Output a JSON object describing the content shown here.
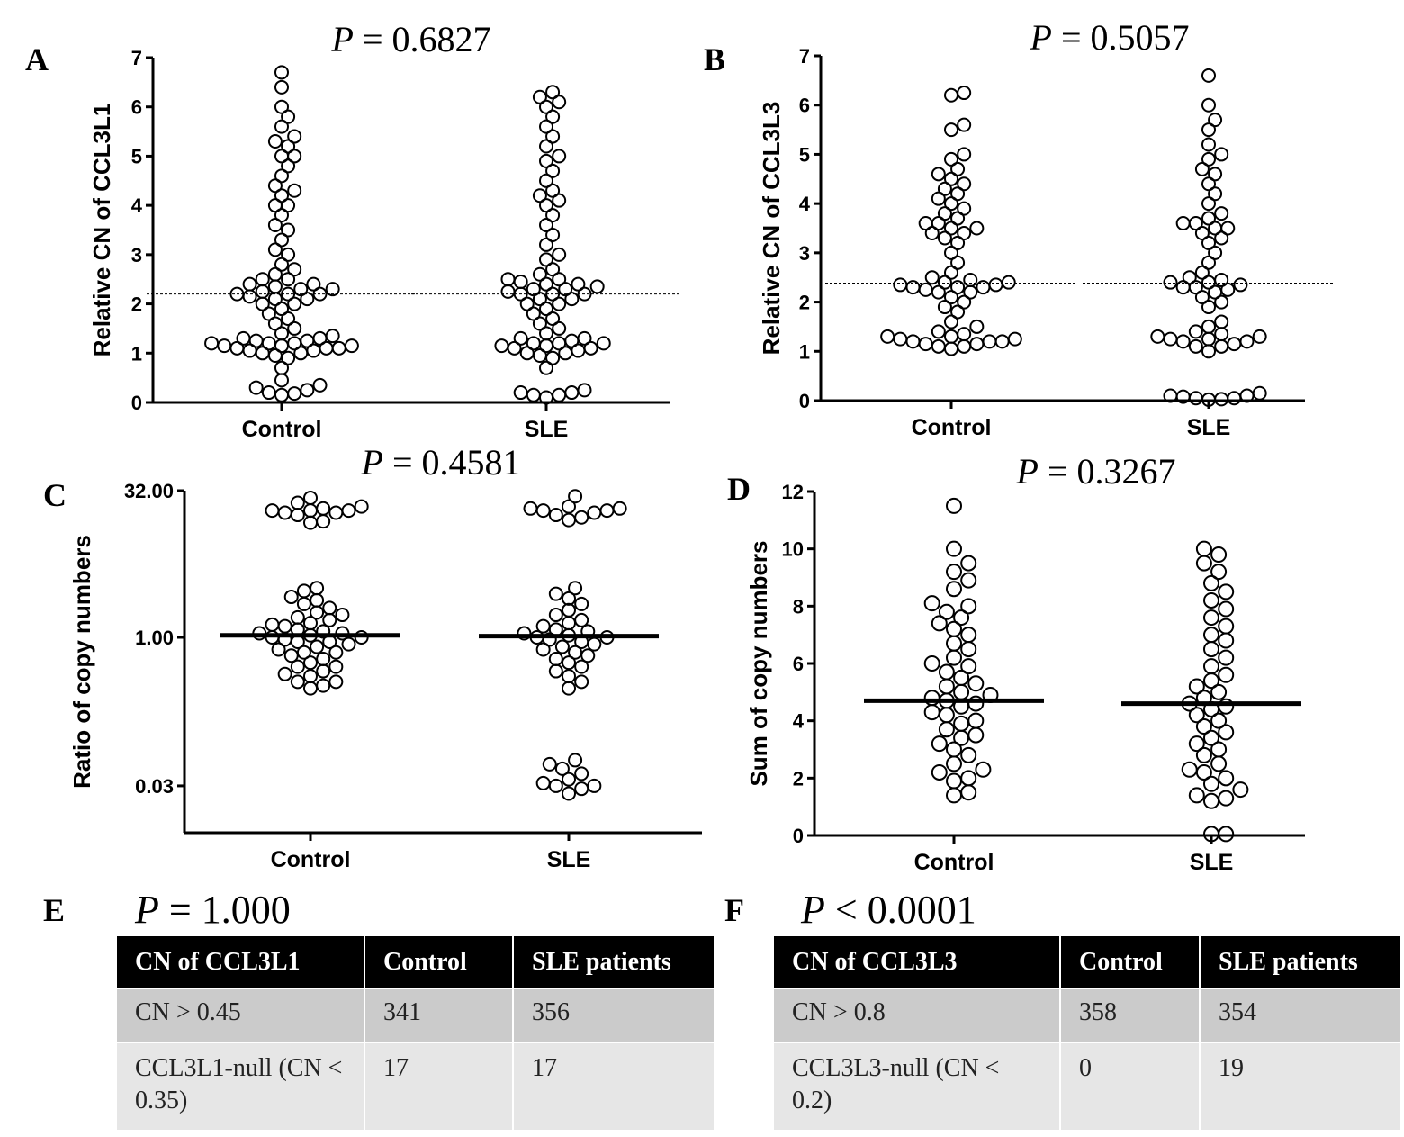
{
  "chart_data": [
    {
      "panel": "A",
      "type": "scatter",
      "title": "P = 0.6827",
      "ylabel": "Relative CN of CCL3L1",
      "scale": "linear",
      "ylim": [
        0,
        7
      ],
      "yticks": [
        0,
        1,
        2,
        3,
        4,
        5,
        6,
        7
      ],
      "ytick_labels": [
        "0",
        "1",
        "2",
        "3",
        "4",
        "5",
        "6",
        "7"
      ],
      "categories": [
        "Control",
        "SLE"
      ],
      "mean_line": [
        2.2,
        2.2
      ],
      "series": [
        {
          "values": [
            0.15,
            0.18,
            0.2,
            0.25,
            0.3,
            0.35,
            0.45,
            0.7,
            0.9,
            0.95,
            1.0,
            1.0,
            1.05,
            1.05,
            1.1,
            1.1,
            1.1,
            1.15,
            1.15,
            1.15,
            1.2,
            1.2,
            1.2,
            1.25,
            1.25,
            1.3,
            1.3,
            1.35,
            1.4,
            1.5,
            1.6,
            1.7,
            1.8,
            1.9,
            2.0,
            2.0,
            2.1,
            2.1,
            2.15,
            2.2,
            2.2,
            2.2,
            2.25,
            2.3,
            2.3,
            2.35,
            2.4,
            2.4,
            2.5,
            2.5,
            2.6,
            2.7,
            2.8,
            3.0,
            3.1,
            3.3,
            3.5,
            3.6,
            3.8,
            4.0,
            4.0,
            4.2,
            4.3,
            4.4,
            4.6,
            4.8,
            5.0,
            5.0,
            5.2,
            5.3,
            5.4,
            5.6,
            5.8,
            6.0,
            6.4,
            6.7
          ]
        },
        {
          "values": [
            0.1,
            0.15,
            0.15,
            0.2,
            0.2,
            0.25,
            0.7,
            0.9,
            0.95,
            1.0,
            1.0,
            1.05,
            1.1,
            1.1,
            1.15,
            1.15,
            1.2,
            1.2,
            1.2,
            1.25,
            1.3,
            1.3,
            1.4,
            1.5,
            1.6,
            1.7,
            1.8,
            1.9,
            2.0,
            2.0,
            2.1,
            2.1,
            2.2,
            2.2,
            2.2,
            2.25,
            2.3,
            2.3,
            2.35,
            2.4,
            2.4,
            2.45,
            2.5,
            2.5,
            2.6,
            2.7,
            2.9,
            3.0,
            3.2,
            3.4,
            3.6,
            3.8,
            4.0,
            4.1,
            4.2,
            4.3,
            4.5,
            4.7,
            4.9,
            5.0,
            5.2,
            5.4,
            5.6,
            5.8,
            6.0,
            6.1,
            6.2,
            6.3
          ]
        }
      ]
    },
    {
      "panel": "B",
      "type": "scatter",
      "title": "P = 0.5057",
      "ylabel": "Relative CN of CCL3L3",
      "scale": "linear",
      "ylim": [
        0,
        7
      ],
      "yticks": [
        0,
        1,
        2,
        3,
        4,
        5,
        6,
        7
      ],
      "ytick_labels": [
        "0",
        "1",
        "2",
        "3",
        "4",
        "5",
        "6",
        "7"
      ],
      "categories": [
        "Control",
        "SLE"
      ],
      "mean_line": [
        2.38,
        2.38
      ],
      "series": [
        {
          "values": [
            1.05,
            1.1,
            1.1,
            1.15,
            1.15,
            1.2,
            1.2,
            1.2,
            1.25,
            1.25,
            1.3,
            1.3,
            1.35,
            1.4,
            1.5,
            1.6,
            1.8,
            1.9,
            2.0,
            2.1,
            2.2,
            2.2,
            2.25,
            2.3,
            2.3,
            2.3,
            2.35,
            2.35,
            2.4,
            2.4,
            2.45,
            2.5,
            2.6,
            2.8,
            3.0,
            3.2,
            3.3,
            3.4,
            3.4,
            3.5,
            3.5,
            3.6,
            3.6,
            3.7,
            3.8,
            3.9,
            4.0,
            4.1,
            4.2,
            4.3,
            4.4,
            4.5,
            4.6,
            4.7,
            4.9,
            5.0,
            5.5,
            5.6,
            6.2,
            6.25
          ]
        },
        {
          "values": [
            0.02,
            0.03,
            0.05,
            0.05,
            0.08,
            0.1,
            0.1,
            0.15,
            1.0,
            1.1,
            1.1,
            1.15,
            1.2,
            1.2,
            1.25,
            1.25,
            1.3,
            1.3,
            1.35,
            1.4,
            1.5,
            1.6,
            1.9,
            2.0,
            2.1,
            2.2,
            2.25,
            2.3,
            2.3,
            2.35,
            2.4,
            2.4,
            2.45,
            2.5,
            2.6,
            2.8,
            3.0,
            3.2,
            3.3,
            3.4,
            3.5,
            3.5,
            3.6,
            3.6,
            3.7,
            3.8,
            4.0,
            4.2,
            4.4,
            4.6,
            4.7,
            4.9,
            5.0,
            5.2,
            5.5,
            5.7,
            6.0,
            6.6
          ]
        }
      ]
    },
    {
      "panel": "C",
      "type": "scatter",
      "title": "P = 0.4581",
      "ylabel": "Ratio of copy numbers",
      "scale": "log2",
      "yticks": [
        32,
        1,
        0.03
      ],
      "ytick_labels": [
        "32.00",
        "1.00",
        "0.03"
      ],
      "categories": [
        "Control",
        "SLE"
      ],
      "mean_line": [
        1.05,
        1.03
      ],
      "series": [
        {
          "values": [
            0.3,
            0.32,
            0.35,
            0.35,
            0.4,
            0.42,
            0.45,
            0.5,
            0.5,
            0.55,
            0.6,
            0.65,
            0.7,
            0.7,
            0.75,
            0.8,
            0.85,
            0.9,
            0.9,
            0.95,
            1.0,
            1.0,
            1.05,
            1.1,
            1.1,
            1.15,
            1.2,
            1.3,
            1.35,
            1.4,
            1.5,
            1.6,
            1.7,
            1.8,
            2.0,
            2.2,
            2.4,
            2.6,
            3.0,
            3.2,
            15,
            15.5,
            18,
            19,
            19,
            20,
            20,
            20,
            21,
            22,
            24,
            27
          ]
        },
        {
          "values": [
            0.025,
            0.028,
            0.03,
            0.03,
            0.032,
            0.035,
            0.04,
            0.045,
            0.05,
            0.055,
            0.3,
            0.35,
            0.4,
            0.45,
            0.5,
            0.55,
            0.6,
            0.65,
            0.7,
            0.75,
            0.8,
            0.85,
            0.9,
            0.95,
            1.0,
            1.0,
            1.05,
            1.1,
            1.15,
            1.2,
            1.3,
            1.4,
            1.5,
            1.7,
            1.9,
            2.2,
            2.5,
            2.8,
            3.2,
            16,
            17,
            18,
            19,
            20,
            20,
            21,
            21,
            22,
            28
          ]
        }
      ]
    },
    {
      "panel": "D",
      "type": "scatter",
      "title": "P = 0.3267",
      "ylabel": "Sum of copy numbers",
      "scale": "linear",
      "ylim": [
        0,
        12
      ],
      "yticks": [
        0,
        2,
        4,
        6,
        8,
        10,
        12
      ],
      "ytick_labels": [
        "0",
        "2",
        "4",
        "6",
        "8",
        "10",
        "12"
      ],
      "categories": [
        "Control",
        "SLE"
      ],
      "mean_line": [
        4.7,
        4.6
      ],
      "series": [
        {
          "values": [
            1.4,
            1.5,
            1.9,
            2.0,
            2.2,
            2.3,
            2.5,
            2.8,
            3.0,
            3.2,
            3.4,
            3.5,
            3.7,
            3.9,
            4.0,
            4.2,
            4.3,
            4.5,
            4.6,
            4.7,
            4.8,
            4.9,
            5.0,
            5.2,
            5.3,
            5.5,
            5.7,
            5.9,
            6.0,
            6.2,
            6.5,
            6.7,
            7.0,
            7.2,
            7.4,
            7.6,
            7.8,
            8.0,
            8.1,
            8.6,
            8.9,
            9.2,
            9.5,
            10.0,
            11.5
          ]
        },
        {
          "values": [
            0.05,
            0.05,
            1.2,
            1.3,
            1.4,
            1.6,
            1.8,
            2.0,
            2.2,
            2.3,
            2.5,
            2.8,
            3.0,
            3.2,
            3.4,
            3.6,
            3.8,
            4.0,
            4.2,
            4.4,
            4.5,
            4.6,
            4.8,
            5.0,
            5.2,
            5.4,
            5.6,
            5.9,
            6.2,
            6.5,
            6.8,
            7.0,
            7.3,
            7.6,
            7.9,
            8.2,
            8.5,
            8.8,
            9.2,
            9.5,
            9.8,
            10.0
          ]
        }
      ]
    }
  ],
  "tables": [
    {
      "panel": "E",
      "p_value": "P = 1.000",
      "headers": [
        "CN of CCL3L1",
        "Control",
        "SLE patients"
      ],
      "rows": [
        [
          "CN > 0.45",
          "341",
          "356"
        ],
        [
          "CCL3L1-null (CN < 0.35)",
          "17",
          "17"
        ]
      ]
    },
    {
      "panel": "F",
      "p_value": "P < 0.0001",
      "headers": [
        "CN of CCL3L3",
        "Control",
        "SLE patients"
      ],
      "rows": [
        [
          "CN > 0.8",
          "358",
          "354"
        ],
        [
          "CCL3L3-null (CN < 0.2)",
          "0",
          "19"
        ]
      ]
    }
  ]
}
